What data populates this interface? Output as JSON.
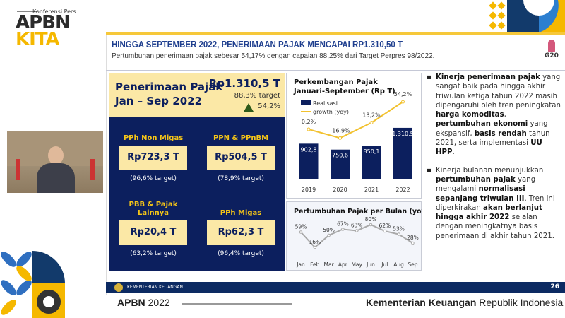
{
  "branding": {
    "conference": "Konferensi Pers",
    "logo_line1": "APBN",
    "logo_line2": "KITA",
    "g20": "G20"
  },
  "slide": {
    "title": "HINGGA SEPTEMBER 2022, PENERIMAAN PAJAK MENCAPAI RP1.310,50 T",
    "subtitle": "Pertumbuhan penerimaan pajak sebesar 54,17% dengan capaian 88,25% dari Target Perpres 98/2022.",
    "summary": {
      "title_line1": "Penerimaan Pajak",
      "title_line2": "Jan – Sep 2022",
      "value": "Rp1.310,5 T",
      "target": "88,3% target",
      "growth": "54,2%"
    },
    "categories": [
      {
        "name": "PPh Non Migas",
        "value": "Rp723,3 T",
        "target": "(96,6% target)"
      },
      {
        "name": "PPN & PPnBM",
        "value": "Rp504,5 T",
        "target": "(78,9% target)"
      },
      {
        "name": "PBB & Pajak Lainnya",
        "value": "Rp20,4 T",
        "target": "(63,2% target)"
      },
      {
        "name": "PPh Migas",
        "value": "Rp62,3 T",
        "target": "(96,4% target)"
      }
    ],
    "bullets": [
      "<b>Kinerja penerimaan pajak</b> yang sangat baik pada hingga akhir triwulan ketiga tahun 2022 masih dipengaruhi oleh tren peningkatan <b>harga komoditas</b>, <b>pertumbuhan ekonomi</b> yang ekspansif, <b>basis rendah</b> tahun 2021, serta implementasi  <b>UU HPP</b>.",
      "Kinerja bulanan menunjukkan <b>pertumbuhan pajak</b> yang mengalami <b>normalisasi sepanjang triwulan III</b>. Tren ini diperkirakan <b>akan berlanjut hingga akhir 2022</b> sejalan dengan meningkatnya basis penerimaan di akhir tahun 2021."
    ],
    "footer": {
      "org": "KEMENTERIAN KEUANGAN",
      "page": "26"
    }
  },
  "bottom_bar": {
    "apbn_bold": "APBN",
    "apbn_year": "2022",
    "ministry_bold": "Kementerian Keuangan",
    "ministry_rest": "Republik Indonesia"
  },
  "colors": {
    "navy": "#0c1f5e",
    "yellow": "#f5c518",
    "line_yellow": "#f2c12e",
    "gray_line": "#a9a9a9"
  },
  "chart_data": [
    {
      "type": "bar",
      "title": "Perkembangan Pajak Januari-September (Rp T)",
      "categories": [
        "2019",
        "2020",
        "2021",
        "2022"
      ],
      "series": [
        {
          "name": "Realisasi",
          "type": "bar",
          "values": [
            902.8,
            750.6,
            850.1,
            1310.5
          ],
          "labels": [
            "902,8",
            "750,6",
            "850,1",
            "1.310,5"
          ]
        },
        {
          "name": "growth (yoy)",
          "type": "line",
          "values": [
            0.2,
            -16.9,
            13.2,
            54.2
          ],
          "labels": [
            "0,2%",
            "-16,9%",
            "13,2%",
            "54,2%"
          ]
        }
      ],
      "legend": "top-left"
    },
    {
      "type": "line",
      "title": "Pertumbuhan Pajak per Bulan (yoy)",
      "categories": [
        "Jan",
        "Feb",
        "Mar",
        "Apr",
        "May",
        "Jun",
        "Jul",
        "Aug",
        "Sep"
      ],
      "values": [
        59,
        16,
        50,
        67,
        63,
        80,
        62,
        53,
        28
      ],
      "labels": [
        "59%",
        "16%",
        "50%",
        "67%",
        "63%",
        "80%",
        "62%",
        "53%",
        "28%"
      ]
    }
  ]
}
